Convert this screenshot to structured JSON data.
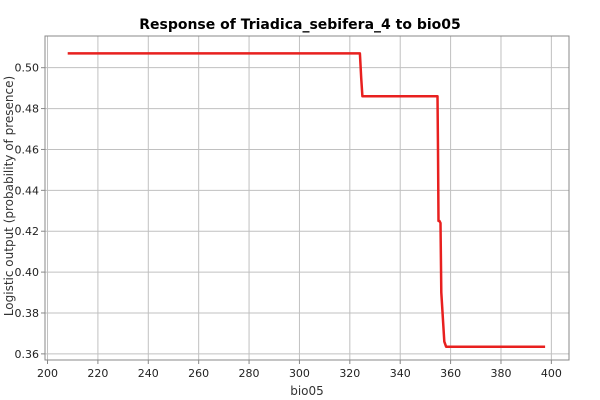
{
  "chart_data": {
    "type": "line",
    "title": "Response of Triadica_sebifera_4 to bio05",
    "xlabel": "bio05",
    "ylabel": "Logistic output (probability of presence)",
    "xlim": [
      199,
      407
    ],
    "ylim": [
      0.357,
      0.5155
    ],
    "xticks": [
      200,
      220,
      240,
      260,
      280,
      300,
      320,
      340,
      360,
      380,
      400
    ],
    "yticks": [
      0.36,
      0.38,
      0.4,
      0.42,
      0.44,
      0.46,
      0.48,
      0.5
    ],
    "xtick_labels": [
      "200",
      "220",
      "240",
      "260",
      "280",
      "300",
      "320",
      "340",
      "360",
      "380",
      "400"
    ],
    "ytick_labels": [
      "0.36",
      "0.38",
      "0.40",
      "0.42",
      "0.44",
      "0.46",
      "0.48",
      "0.50"
    ],
    "grid": true,
    "series": [
      {
        "color": "#e8201f",
        "x": [
          208,
          324,
          324.5,
          325,
          354.8,
          355,
          355.2,
          355.6,
          356,
          356.3,
          357.5,
          358.2,
          397.5
        ],
        "y": [
          0.507,
          0.507,
          0.495,
          0.486,
          0.486,
          0.46,
          0.425,
          0.425,
          0.424,
          0.39,
          0.366,
          0.3635,
          0.3635
        ]
      }
    ]
  }
}
